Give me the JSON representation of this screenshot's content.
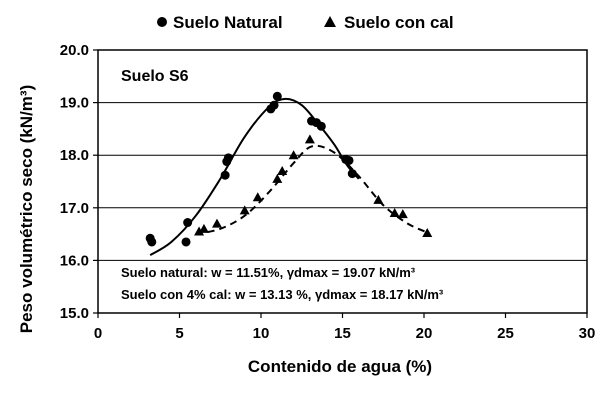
{
  "chart_data": {
    "type": "scatter",
    "xlabel": "Contenido de agua (%)",
    "ylabel": "Peso volumétrico seco (kN/m³)",
    "xlim": [
      0,
      30
    ],
    "ylim": [
      15.0,
      20.0
    ],
    "x_ticks": [
      "0",
      "5",
      "10",
      "15",
      "20",
      "25",
      "30"
    ],
    "y_ticks": [
      "15.0",
      "16.0",
      "17.0",
      "18.0",
      "19.0",
      "20.0"
    ],
    "grid": "horizontal",
    "legend_position": "top",
    "soil_label": "Suelo S6",
    "annotations": [
      "Suelo natural: w = 11.51%,  γdmax = 19.07 kN/m³",
      "Suelo con 4% cal: w = 13.13 %, γdmax = 18.17 kN/m³"
    ],
    "series": [
      {
        "name": "Suelo Natural",
        "marker": "circle",
        "color": "#000000",
        "points": [
          [
            3.2,
            16.42
          ],
          [
            3.3,
            16.35
          ],
          [
            5.4,
            16.35
          ],
          [
            5.5,
            16.72
          ],
          [
            7.8,
            17.62
          ],
          [
            7.9,
            17.88
          ],
          [
            8.0,
            17.95
          ],
          [
            10.6,
            18.88
          ],
          [
            10.8,
            18.95
          ],
          [
            11.0,
            19.12
          ],
          [
            13.1,
            18.65
          ],
          [
            13.4,
            18.62
          ],
          [
            13.7,
            18.55
          ],
          [
            15.2,
            17.92
          ],
          [
            15.4,
            17.9
          ],
          [
            15.6,
            17.65
          ]
        ],
        "curve": [
          [
            3.2,
            16.1
          ],
          [
            4.5,
            16.35
          ],
          [
            6.0,
            16.85
          ],
          [
            7.5,
            17.55
          ],
          [
            9.0,
            18.35
          ],
          [
            10.5,
            18.92
          ],
          [
            11.5,
            19.07
          ],
          [
            12.5,
            18.95
          ],
          [
            13.5,
            18.6
          ],
          [
            14.5,
            18.2
          ],
          [
            15.3,
            17.8
          ],
          [
            16.0,
            17.55
          ]
        ]
      },
      {
        "name": "Suelo con cal",
        "marker": "triangle",
        "color": "#000000",
        "points": [
          [
            6.2,
            16.55
          ],
          [
            6.5,
            16.6
          ],
          [
            7.3,
            16.7
          ],
          [
            9.0,
            16.95
          ],
          [
            9.8,
            17.2
          ],
          [
            11.0,
            17.55
          ],
          [
            11.3,
            17.7
          ],
          [
            12.0,
            18.0
          ],
          [
            13.0,
            18.3
          ],
          [
            17.2,
            17.15
          ],
          [
            18.2,
            16.9
          ],
          [
            18.7,
            16.88
          ],
          [
            20.2,
            16.52
          ]
        ],
        "curve": [
          [
            6.0,
            16.5
          ],
          [
            7.5,
            16.6
          ],
          [
            9.0,
            16.85
          ],
          [
            10.5,
            17.3
          ],
          [
            12.0,
            17.85
          ],
          [
            13.13,
            18.17
          ],
          [
            14.5,
            18.05
          ],
          [
            16.0,
            17.6
          ],
          [
            17.5,
            17.05
          ],
          [
            19.0,
            16.7
          ],
          [
            20.3,
            16.52
          ]
        ]
      }
    ]
  }
}
